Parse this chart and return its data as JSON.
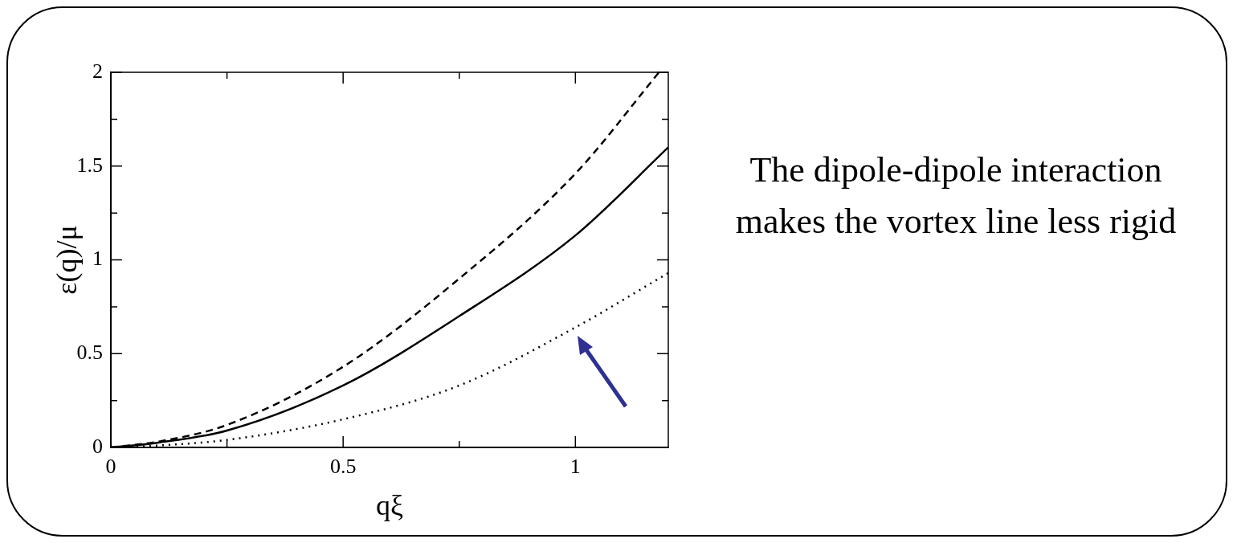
{
  "chart_data": {
    "type": "line",
    "xlabel": "qξ",
    "ylabel": "ε(q)/μ",
    "x": [
      0,
      0.1,
      0.25,
      0.5,
      0.75,
      1,
      1.18
    ],
    "series": [
      {
        "color": "#000000",
        "line_style": "dashed",
        "values": [
          0,
          0.03,
          0.12,
          0.43,
          0.9,
          1.46,
          2.0
        ]
      },
      {
        "color": "#000000",
        "line_style": "solid",
        "x": [
          0,
          0.1,
          0.25,
          0.5,
          0.75,
          1,
          1.2
        ],
        "values": [
          0,
          0.025,
          0.09,
          0.33,
          0.7,
          1.13,
          1.6
        ]
      },
      {
        "color": "#000000",
        "line_style": "dotted",
        "x": [
          0,
          0.1,
          0.25,
          0.5,
          0.75,
          1,
          1.2
        ],
        "values": [
          0,
          0.01,
          0.04,
          0.15,
          0.33,
          0.64,
          0.93
        ]
      }
    ],
    "xlim": [
      0,
      1.2
    ],
    "xticks": [
      0,
      {
        "value": 0.25,
        "label": null
      },
      0.5,
      {
        "value": 0.75,
        "label": null
      },
      1
    ],
    "ylim": [
      0,
      2
    ],
    "yticks": [
      0,
      {
        "value": 0.25,
        "label": null
      },
      0.5,
      {
        "value": 0.75,
        "label": null
      },
      1,
      {
        "value": 1.25,
        "label": null
      },
      1.5,
      {
        "value": 1.75,
        "label": null
      },
      2
    ],
    "legend": false,
    "marker": "none",
    "annotations": [
      "The dipole-dipole interaction makes the vortex line less rigid"
    ]
  }
}
